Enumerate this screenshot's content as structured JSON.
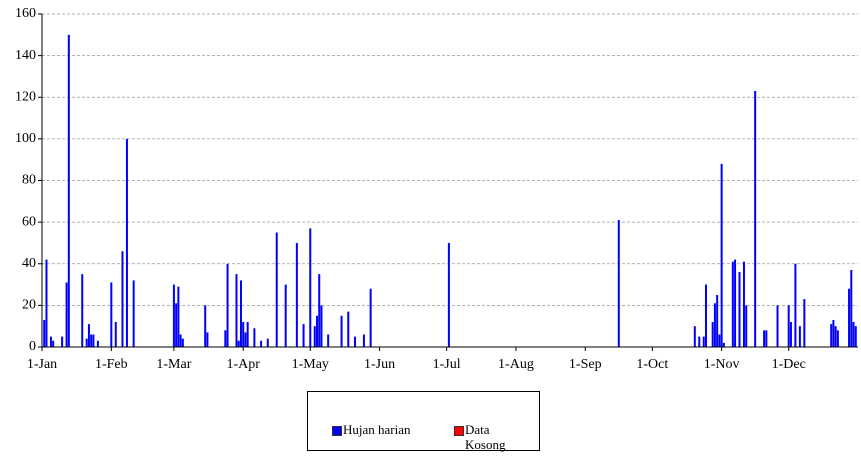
{
  "chart_data": {
    "type": "bar",
    "xlim": [
      1,
      366
    ],
    "xticks": [
      {
        "value": 1,
        "label": "1-Jan"
      },
      {
        "value": 32,
        "label": "1-Feb"
      },
      {
        "value": 60,
        "label": "1-Mar"
      },
      {
        "value": 91,
        "label": "1-Apr"
      },
      {
        "value": 121,
        "label": "1-May"
      },
      {
        "value": 152,
        "label": "1-Jun"
      },
      {
        "value": 182,
        "label": "1-Jul"
      },
      {
        "value": 213,
        "label": "1-Aug"
      },
      {
        "value": 244,
        "label": "1-Sep"
      },
      {
        "value": 274,
        "label": "1-Oct"
      },
      {
        "value": 305,
        "label": "1-Nov"
      },
      {
        "value": 335,
        "label": "1-Dec"
      }
    ],
    "ylim": [
      0,
      160
    ],
    "yticks": [
      0,
      20,
      40,
      60,
      80,
      100,
      120,
      140,
      160
    ],
    "grid": true,
    "series": [
      {
        "name": "Hujan harian",
        "color": "#0000ff",
        "x": [
          2,
          3,
          5,
          6,
          10,
          12,
          13,
          19,
          21,
          22,
          23,
          24,
          26,
          32,
          34,
          37,
          39,
          42,
          60,
          61,
          62,
          63,
          64,
          74,
          75,
          83,
          84,
          88,
          89,
          90,
          91,
          92,
          93,
          96,
          99,
          102,
          106,
          110,
          115,
          118,
          121,
          123,
          124,
          125,
          126,
          129,
          135,
          138,
          141,
          145,
          148,
          183,
          259,
          293,
          295,
          297,
          298,
          301,
          302,
          303,
          304,
          305,
          306,
          310,
          311,
          313,
          315,
          316,
          320,
          324,
          325,
          330,
          335,
          336,
          338,
          340,
          342,
          354,
          355,
          356,
          357,
          362,
          363,
          364,
          365
        ],
        "values": [
          13,
          42,
          5,
          3,
          5,
          31,
          150,
          35,
          4,
          11,
          6,
          6,
          3,
          31,
          12,
          46,
          100,
          32,
          30,
          21,
          29,
          6,
          4,
          20,
          7,
          8,
          40,
          35,
          3,
          32,
          12,
          7,
          12,
          9,
          3,
          4,
          55,
          30,
          50,
          11,
          57,
          10,
          15,
          35,
          20,
          6,
          15,
          17,
          5,
          6,
          28,
          50,
          61,
          10,
          5,
          5,
          30,
          12,
          21,
          25,
          6,
          88,
          2,
          41,
          42,
          36,
          41,
          20,
          123,
          8,
          8,
          20,
          20,
          12,
          40,
          10,
          23,
          11,
          13,
          10,
          8,
          28,
          37,
          12,
          10
        ]
      },
      {
        "name": "Data Kosong",
        "color": "#ff0000",
        "x": [],
        "values": []
      }
    ]
  }
}
